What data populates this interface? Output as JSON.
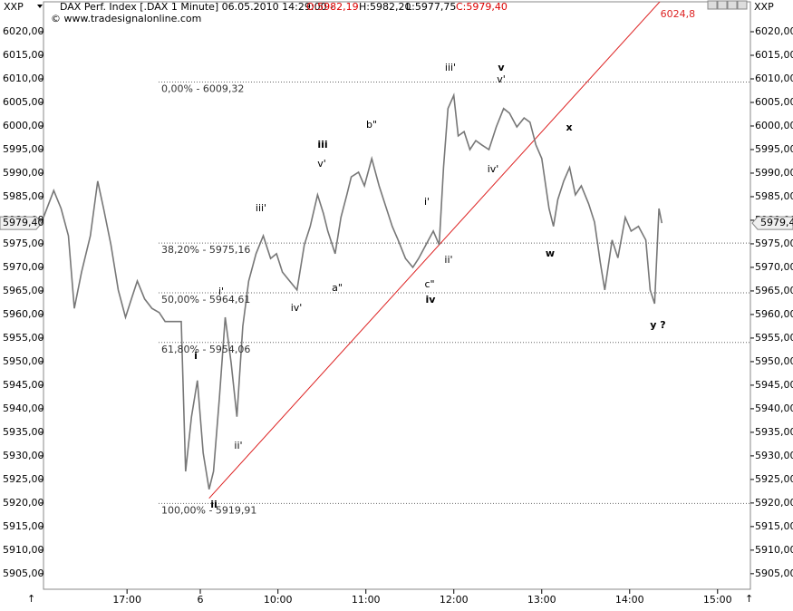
{
  "chart_data": {
    "type": "line",
    "symbol": "XXP",
    "title": "DAX Perf. Index [.DAX  1 Minute] 06.05.2010 14:29:00 -",
    "quote": [
      "O:5982,19",
      "H:5982,20",
      "L:5977,75",
      "C:5979,40"
    ],
    "subtitle": "© www.tradesignalonline.com",
    "color": "#777777",
    "x": [
      0,
      7,
      12,
      17,
      21,
      26,
      32,
      37,
      41,
      46,
      51,
      56,
      60,
      64,
      69,
      74,
      79,
      83,
      88,
      94,
      97,
      101,
      105,
      109,
      113,
      116,
      120,
      124,
      128,
      132,
      136,
      140,
      145,
      150,
      155,
      159,
      163,
      168,
      173,
      178,
      182,
      187,
      191,
      194,
      199,
      203,
      207,
      210,
      215,
      219,
      224,
      229,
      233,
      238,
      242,
      247,
      252,
      256,
      261,
      266,
      270,
      273,
      276,
      280,
      283,
      287,
      291,
      295,
      299,
      304,
      309,
      314,
      318,
      323,
      328,
      332,
      336,
      340,
      345,
      348,
      351,
      355,
      359,
      363,
      367,
      372,
      376,
      380,
      383,
      388,
      392,
      397,
      401,
      406,
      411,
      414,
      417,
      420,
      422
    ],
    "values": [
      5980.6,
      5986.3,
      5982.5,
      5976.7,
      5961.3,
      5969.0,
      5976.7,
      5988.3,
      5982.5,
      5974.8,
      5965.2,
      5959.4,
      5963.3,
      5967.1,
      5963.3,
      5961.3,
      5960.4,
      5958.5,
      5958.5,
      5958.5,
      5926.7,
      5938.3,
      5946.0,
      5930.6,
      5922.9,
      5926.7,
      5942.1,
      5959.4,
      5949.8,
      5938.3,
      5957.5,
      5967.1,
      5972.9,
      5976.7,
      5971.9,
      5972.9,
      5969.0,
      5967.1,
      5965.2,
      5974.8,
      5978.7,
      5985.4,
      5981.5,
      5977.7,
      5972.9,
      5980.6,
      5985.4,
      5989.2,
      5990.2,
      5987.3,
      5993.1,
      5987.3,
      5983.5,
      5978.7,
      5975.8,
      5971.9,
      5970.0,
      5971.9,
      5974.8,
      5977.7,
      5974.8,
      5991.2,
      6003.7,
      6006.5,
      5997.9,
      5998.8,
      5995.0,
      5996.9,
      5996.0,
      5995.0,
      5999.8,
      6003.7,
      6002.7,
      5999.8,
      6001.7,
      6000.8,
      5996.0,
      5993.1,
      5982.5,
      5978.7,
      5984.4,
      5988.3,
      5991.2,
      5985.4,
      5987.3,
      5983.5,
      5979.6,
      5971.0,
      5965.2,
      5975.8,
      5972.0,
      5980.6,
      5977.7,
      5978.7,
      5975.8,
      5965.2,
      5962.3,
      5982.5,
      5979.4
    ],
    "xlim": [
      0,
      482.4
    ],
    "ylim": [
      5901.7,
      6026.35
    ],
    "xticks": [
      {
        "value": 57,
        "label": "17:00"
      },
      {
        "value": 107,
        "label": "6"
      },
      {
        "value": 160,
        "label": "10:00"
      },
      {
        "value": 220,
        "label": "11:00"
      },
      {
        "value": 280,
        "label": "12:00"
      },
      {
        "value": 340,
        "label": "13:00"
      },
      {
        "value": 400,
        "label": "14:00"
      },
      {
        "value": 460,
        "label": "15:00"
      }
    ],
    "yticks": [
      {
        "value": 5905,
        "label": "5905,00"
      },
      {
        "value": 5910,
        "label": "5910,00"
      },
      {
        "value": 5915,
        "label": "5915,00"
      },
      {
        "value": 5920,
        "label": "5920,00"
      },
      {
        "value": 5925,
        "label": "5925,00"
      },
      {
        "value": 5930,
        "label": "5930,00"
      },
      {
        "value": 5935,
        "label": "5935,00"
      },
      {
        "value": 5940,
        "label": "5940,00"
      },
      {
        "value": 5945,
        "label": "5945,00"
      },
      {
        "value": 5950,
        "label": "5950,00"
      },
      {
        "value": 5955,
        "label": "5955,00"
      },
      {
        "value": 5960,
        "label": "5960,00"
      },
      {
        "value": 5965,
        "label": "5965,00"
      },
      {
        "value": 5970,
        "label": "5970,00"
      },
      {
        "value": 5975,
        "label": "5975,00"
      },
      {
        "value": 5980,
        "label": "5980,00"
      },
      {
        "value": 5985,
        "label": "5985,00"
      },
      {
        "value": 5990,
        "label": "5990,00"
      },
      {
        "value": 5995,
        "label": "5995,00"
      },
      {
        "value": 6000,
        "label": "6000,00"
      },
      {
        "value": 6005,
        "label": "6005,00"
      },
      {
        "value": 6010,
        "label": "6010,00"
      },
      {
        "value": 6015,
        "label": "6015,00"
      },
      {
        "value": 6020,
        "label": "6020,00"
      }
    ],
    "current": {
      "value": 5979.4,
      "label": "5979,40"
    },
    "fib_levels": [
      {
        "value": 6009.32,
        "label": "0,00% - 6009,32"
      },
      {
        "value": 5975.16,
        "label": "38,20% - 5975,16"
      },
      {
        "value": 5964.61,
        "label": "50,00% - 5964,61"
      },
      {
        "value": 5954.06,
        "label": "61,80% - 5954,06"
      },
      {
        "value": 5919.91,
        "label": "100,00% - 5919,91"
      }
    ],
    "trendline": {
      "x": [
        113,
        416
      ],
      "y": [
        5921,
        6024.8
      ],
      "label": "6024,8",
      "color": "#dd2222"
    },
    "annotations": [
      "iii'",
      "v",
      "v'",
      "b\"",
      "iii",
      "v'",
      "x",
      "iv'",
      "i'",
      "iii'",
      "w",
      "ii'",
      "a\"",
      "c\"",
      "iv",
      "i'",
      "iv'",
      "y ?",
      "i",
      "ii'",
      "ii"
    ]
  }
}
